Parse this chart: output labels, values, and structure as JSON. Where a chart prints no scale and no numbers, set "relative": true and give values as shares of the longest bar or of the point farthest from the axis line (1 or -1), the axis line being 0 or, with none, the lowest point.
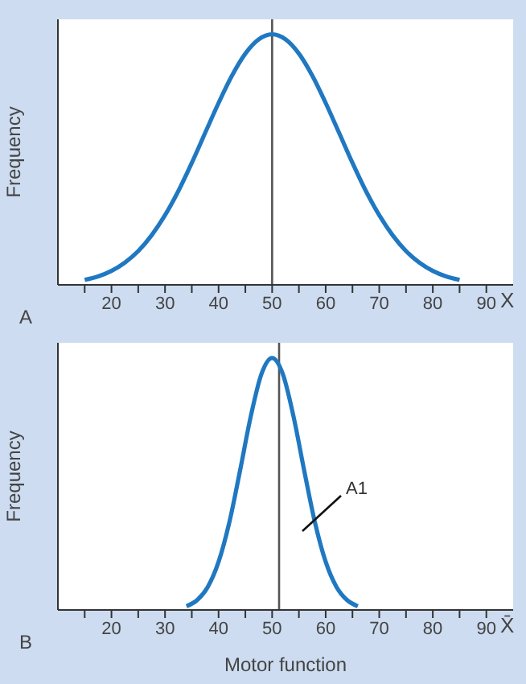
{
  "chart_data": [
    {
      "type": "line",
      "relative": true,
      "ylabel": "Frequency",
      "annotations": [
        "X",
        "A"
      ],
      "x": [
        15,
        17.5,
        20,
        22.5,
        25,
        27.5,
        30,
        32.5,
        35,
        37.5,
        40,
        42.5,
        45,
        47.5,
        50,
        52.5,
        55,
        57.5,
        60,
        62.5,
        65,
        67.5,
        70,
        72.5,
        75,
        77.5,
        80,
        82.5,
        85
      ],
      "series": [
        {
          "color": "#1f78c1",
          "values": [
            0.02,
            0.034,
            0.056,
            0.089,
            0.135,
            0.198,
            0.278,
            0.375,
            0.487,
            0.607,
            0.726,
            0.835,
            0.923,
            0.98,
            1,
            0.98,
            0.923,
            0.835,
            0.726,
            0.607,
            0.487,
            0.375,
            0.278,
            0.198,
            0.135,
            0.089,
            0.056,
            0.034,
            0.02
          ]
        }
      ],
      "xlim": [
        10,
        95
      ],
      "xticks": [
        {
          "value": 15,
          "label": null
        },
        20,
        {
          "value": 25,
          "label": null
        },
        30,
        {
          "value": 35,
          "label": null
        },
        40,
        {
          "value": 45,
          "label": null
        },
        50,
        {
          "value": 55,
          "label": null
        },
        60,
        {
          "value": 65,
          "label": null
        },
        70,
        {
          "value": 75,
          "label": null
        },
        80,
        {
          "value": 85,
          "label": null
        },
        90
      ],
      "ref_lines": [
        {
          "axis": "x",
          "value": 50,
          "color": "#555555"
        }
      ],
      "grid": false,
      "legend": false,
      "marker": "none",
      "line_style": "solid"
    },
    {
      "type": "line",
      "relative": true,
      "ylabel": "Frequency",
      "xlabel": "Motor function",
      "annotations": [
        "X̄",
        "B",
        "A1"
      ],
      "x": [
        34,
        36,
        38,
        40,
        42,
        44,
        46,
        48,
        50,
        52,
        54,
        56,
        58,
        60,
        62,
        64,
        66
      ],
      "series": [
        {
          "color": "#1f78c1",
          "values": [
            0.015,
            0.039,
            0.092,
            0.191,
            0.347,
            0.552,
            0.767,
            0.936,
            1,
            0.936,
            0.767,
            0.552,
            0.347,
            0.191,
            0.092,
            0.039,
            0.015
          ]
        }
      ],
      "xlim": [
        10,
        95
      ],
      "xticks": [
        {
          "value": 15,
          "label": null
        },
        20,
        {
          "value": 25,
          "label": null
        },
        30,
        {
          "value": 35,
          "label": null
        },
        40,
        {
          "value": 45,
          "label": null
        },
        50,
        {
          "value": 55,
          "label": null
        },
        60,
        {
          "value": 65,
          "label": null
        },
        70,
        {
          "value": 75,
          "label": null
        },
        80,
        {
          "value": 85,
          "label": null
        },
        90
      ],
      "ref_lines": [
        {
          "axis": "x",
          "value": 51.3,
          "color": "#555555"
        }
      ],
      "grid": false,
      "legend": false,
      "marker": "none",
      "line_style": "solid"
    }
  ]
}
